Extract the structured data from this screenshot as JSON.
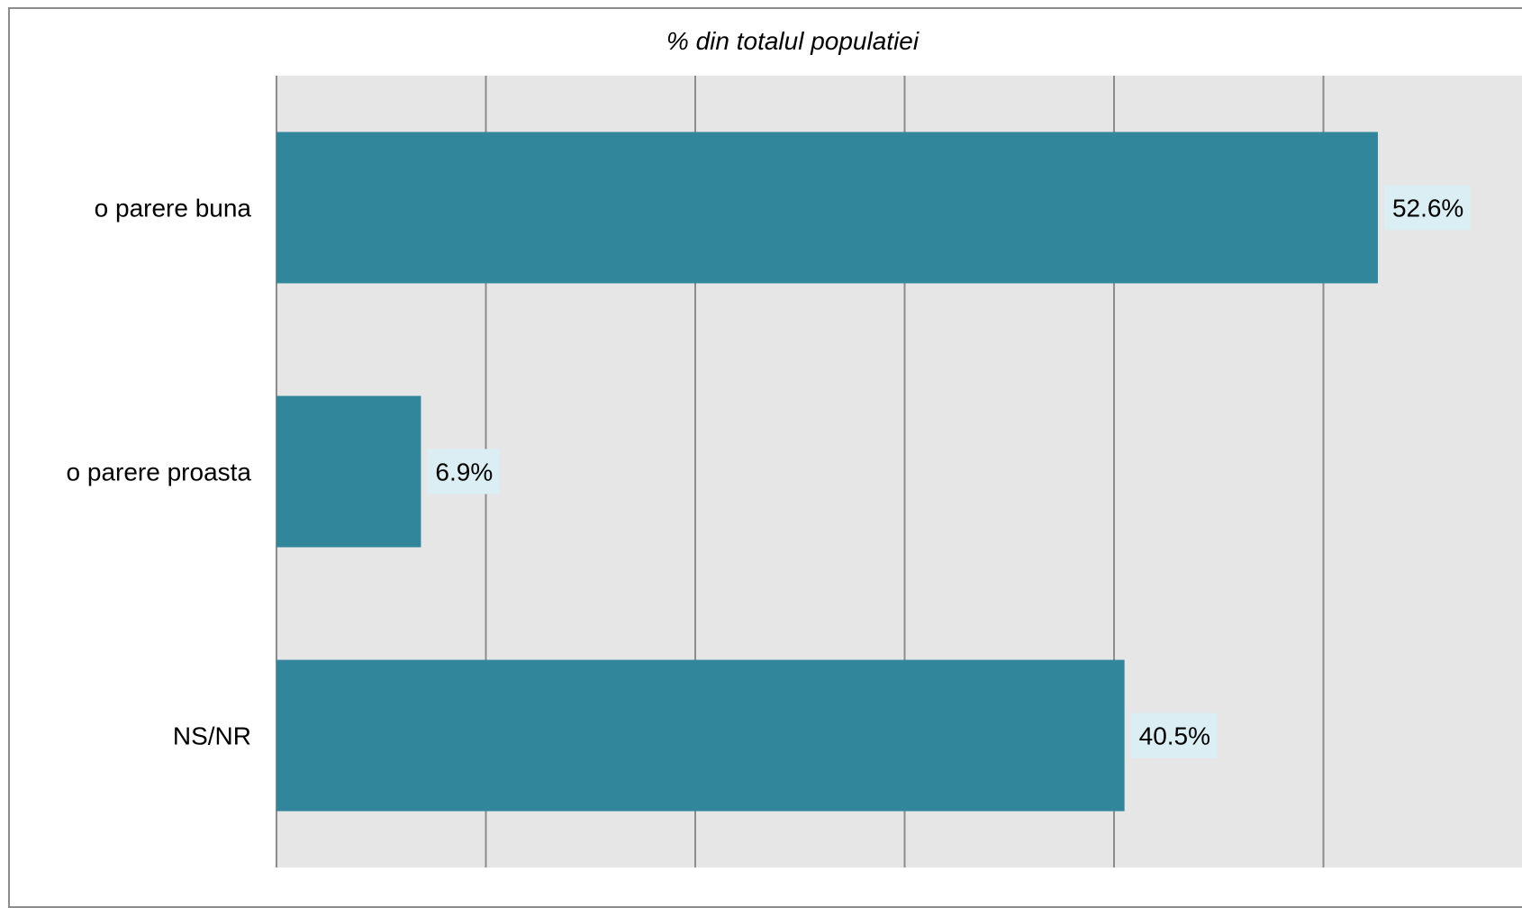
{
  "chart_data": {
    "type": "bar",
    "orientation": "horizontal",
    "title": "% din totalul populatiei",
    "categories": [
      "o parere buna",
      "o parere proasta",
      "NS/NR"
    ],
    "values": [
      52.6,
      6.9,
      40.5
    ],
    "data_labels": [
      "52.6%",
      "6.9%",
      "40.5%"
    ],
    "xlim": [
      0,
      60
    ],
    "grid": true,
    "legend": "none",
    "colors": {
      "bar": "#31869b",
      "plot_background": "#e6e6e6",
      "gridline": "#8c8c8c",
      "data_label_background": "#daeef3"
    }
  }
}
